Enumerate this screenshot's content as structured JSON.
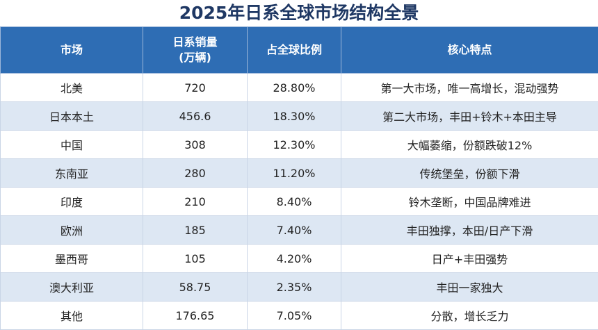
{
  "title": "2025年日系全球市场结构全景",
  "table": {
    "header": [
      [
        "市场"
      ],
      [
        "日系销量",
        "(万辆)"
      ],
      [
        "占全球比例"
      ],
      [
        "核心特点"
      ]
    ],
    "rows": [
      [
        "北美",
        "720",
        "28.80%",
        "第一大市场，唯一高增长，混动强势"
      ],
      [
        "日本本土",
        "456.6",
        "18.30%",
        "第二大市场，丰田+铃木+本田主导"
      ],
      [
        "中国",
        "308",
        "12.30%",
        "大幅萎缩，份额跌破12%"
      ],
      [
        "东南亚",
        "280",
        "11.20%",
        "传统堡垒，份额下滑"
      ],
      [
        "印度",
        "210",
        "8.40%",
        "铃木垄断，中国品牌难进"
      ],
      [
        "欧洲",
        "185",
        "7.40%",
        "丰田独撑，本田/日产下滑"
      ],
      [
        "墨西哥",
        "105",
        "4.20%",
        "日产+丰田强势"
      ],
      [
        "澳大利亚",
        "58.75",
        "2.35%",
        "丰田一家独大"
      ],
      [
        "其他",
        "176.65",
        "7.05%",
        "分散，增长乏力"
      ]
    ]
  }
}
